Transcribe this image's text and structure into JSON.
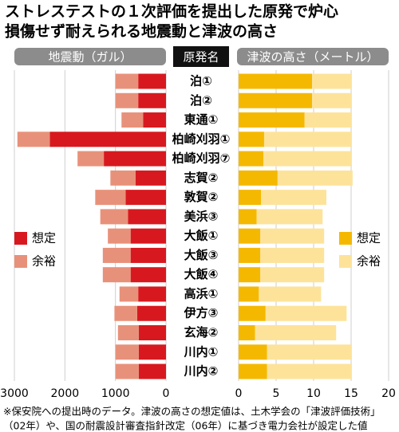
{
  "chart_data": {
    "type": "butterfly",
    "title": [
      "ストレステストの１次評価を提出した原発で炉心",
      "損傷せず耐えられる地震動と津波の高さ"
    ],
    "category_header": "原発名",
    "categories": [
      "泊①",
      "泊②",
      "東通①",
      "柏崎刈羽①",
      "柏崎刈羽⑦",
      "志賀②",
      "敦賀②",
      "美浜③",
      "大飯①",
      "大飯③",
      "大飯④",
      "高浜①",
      "伊方③",
      "玄海②",
      "川内①",
      "川内②"
    ],
    "left": {
      "header": "地震動（ガル）",
      "xlim": [
        3000,
        0
      ],
      "xticks": [
        3000,
        2000,
        1000,
        0
      ],
      "grid": true,
      "series": [
        {
          "name": "想定",
          "color": "#d7191f",
          "values": [
            550,
            550,
            450,
            2300,
            1230,
            600,
            800,
            750,
            700,
            700,
            700,
            550,
            570,
            540,
            540,
            540
          ]
        },
        {
          "name": "余裕",
          "color": "#e8917a",
          "values": [
            450,
            450,
            430,
            640,
            520,
            500,
            600,
            550,
            450,
            550,
            550,
            370,
            450,
            410,
            460,
            460
          ]
        }
      ]
    },
    "right": {
      "header": "津波の高さ（メートル）",
      "xlim": [
        0,
        20
      ],
      "xticks": [
        0,
        5,
        10,
        15,
        20
      ],
      "grid": true,
      "series": [
        {
          "name": "想定",
          "color": "#f5b800",
          "values": [
            9.8,
            9.8,
            8.8,
            3.4,
            3.3,
            5.2,
            3.0,
            2.4,
            2.9,
            2.9,
            2.9,
            2.7,
            3.6,
            2.2,
            3.8,
            3.8
          ]
        },
        {
          "name": "余裕",
          "color": "#fde39a",
          "values": [
            5.3,
            5.3,
            6.3,
            11.7,
            11.8,
            10.0,
            8.7,
            8.8,
            8.5,
            8.5,
            8.5,
            8.3,
            10.8,
            10.8,
            11.3,
            11.3
          ]
        }
      ]
    },
    "note": [
      "※保安院への提出時のデータ。津波の高さの想定値は、土木学会の「津波評価技術」",
      "（02年）や、国の耐震設計審査指針改定（06年）に基づき電力会社が設定した値"
    ]
  }
}
